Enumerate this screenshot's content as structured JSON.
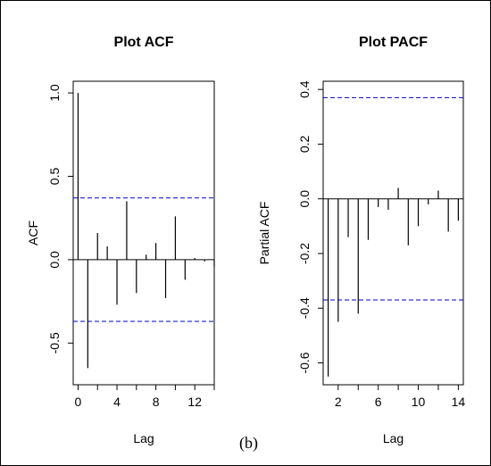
{
  "caption": "(b)",
  "chart_data": [
    {
      "type": "bar",
      "title": "Plot ACF",
      "xlabel": "Lag",
      "ylabel": "ACF",
      "xlim": [
        -0.5,
        14
      ],
      "ylim": [
        -0.75,
        1.07
      ],
      "x_ticks": [
        "0",
        "4",
        "8",
        "12"
      ],
      "x_tick_values": [
        0,
        4,
        8,
        12
      ],
      "x_minor_ticks": [
        2,
        6,
        10,
        14
      ],
      "y_ticks": [
        "-0.5",
        "0.0",
        "0.5",
        "1.0"
      ],
      "y_tick_values": [
        -0.5,
        0.0,
        0.5,
        1.0
      ],
      "lags": [
        0,
        1,
        2,
        3,
        4,
        5,
        6,
        7,
        8,
        9,
        10,
        11,
        12,
        13,
        14
      ],
      "values": [
        1.0,
        -0.65,
        0.16,
        0.08,
        -0.27,
        0.35,
        -0.2,
        0.03,
        0.1,
        -0.23,
        0.26,
        -0.12,
        0.01,
        -0.01,
        -0.04
      ],
      "confidence_bound": 0.37,
      "bar_color": "#000000",
      "bound_color": "#0000cc"
    },
    {
      "type": "bar",
      "title": "Plot PACF",
      "xlabel": "Lag",
      "ylabel": "Partial ACF",
      "xlim": [
        0.5,
        14.5
      ],
      "ylim": [
        -0.68,
        0.43
      ],
      "x_ticks": [
        "2",
        "6",
        "10",
        "14"
      ],
      "x_tick_values": [
        2,
        6,
        10,
        14
      ],
      "x_minor_ticks": [
        4,
        8,
        12
      ],
      "y_ticks": [
        "-0.6",
        "-0.4",
        "-0.2",
        "0.0",
        "0.2",
        "0.4"
      ],
      "y_tick_values": [
        -0.6,
        -0.4,
        -0.2,
        0.0,
        0.2,
        0.4
      ],
      "lags": [
        1,
        2,
        3,
        4,
        5,
        6,
        7,
        8,
        9,
        10,
        11,
        12,
        13,
        14
      ],
      "values": [
        -0.65,
        -0.45,
        -0.14,
        -0.42,
        -0.15,
        -0.03,
        -0.04,
        0.04,
        -0.17,
        -0.1,
        -0.02,
        0.03,
        -0.12,
        -0.08
      ],
      "confidence_bound": 0.37,
      "bar_color": "#000000",
      "bound_color": "#0000cc"
    }
  ]
}
